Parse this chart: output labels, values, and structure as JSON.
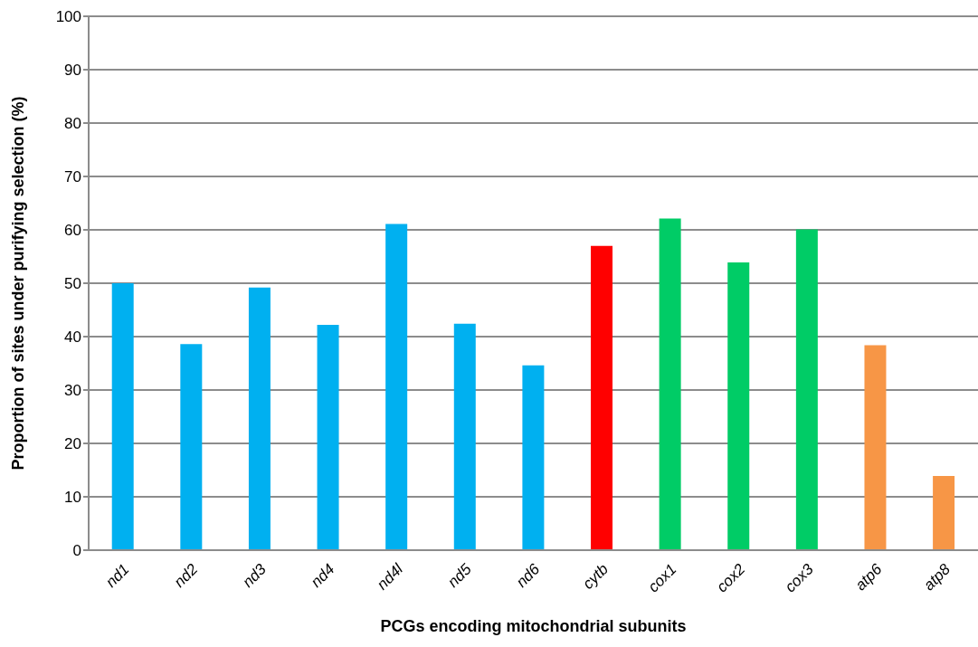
{
  "chart_data": {
    "type": "bar",
    "xlabel": "PCGs encoding mitochondrial subunits",
    "ylabel": "Proportion of sites under purifying selection (%)",
    "categories": [
      "nd1",
      "nd2",
      "nd3",
      "nd4",
      "nd4l",
      "nd5",
      "nd6",
      "cytb",
      "cox1",
      "cox2",
      "cox3",
      "atp6",
      "atp8"
    ],
    "values": [
      50.0,
      38.6,
      49.2,
      42.2,
      61.1,
      42.4,
      34.6,
      57.0,
      62.1,
      53.9,
      60.1,
      38.4,
      13.9
    ],
    "colors": [
      "#00b0f0",
      "#00b0f0",
      "#00b0f0",
      "#00b0f0",
      "#00b0f0",
      "#00b0f0",
      "#00b0f0",
      "#ff0000",
      "#00cc66",
      "#00cc66",
      "#00cc66",
      "#f79646",
      "#f79646"
    ],
    "ylim": [
      0,
      100
    ],
    "yticks": [
      0,
      10,
      20,
      30,
      40,
      50,
      60,
      70,
      80,
      90,
      100
    ],
    "grid": "y"
  }
}
